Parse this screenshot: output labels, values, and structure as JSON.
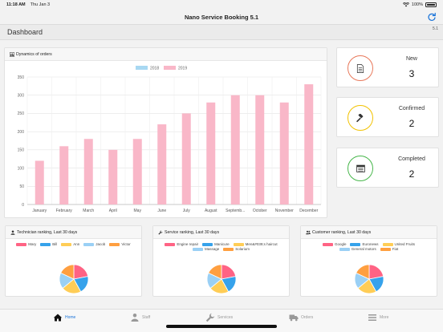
{
  "status_bar": {
    "time": "11:18 AM",
    "date": "Thu Jan 3",
    "battery": "100%"
  },
  "app": {
    "title": "Nano Service Booking 5.1",
    "page_title": "Dashboard",
    "version": "5.1"
  },
  "orders_chart": {
    "header": "Dynamics of orders",
    "colors": {
      "2018": "#a8d8f2",
      "2019": "#f9b7c8"
    }
  },
  "chart_data": {
    "type": "bar",
    "categories": [
      "January",
      "February",
      "March",
      "April",
      "May",
      "June",
      "July",
      "August",
      "Septemb...",
      "October",
      "November",
      "December"
    ],
    "series": [
      {
        "name": "2018",
        "values": [
          0,
          0,
          0,
          0,
          0,
          0,
          0,
          0,
          0,
          0,
          0,
          0
        ]
      },
      {
        "name": "2019",
        "values": [
          120,
          160,
          180,
          150,
          180,
          220,
          250,
          280,
          300,
          300,
          280,
          330
        ]
      }
    ],
    "ylim": [
      0,
      350
    ],
    "yticks": [
      0,
      50,
      100,
      150,
      200,
      250,
      300,
      350
    ],
    "grid": true,
    "legend_position": "top-center"
  },
  "stats": [
    {
      "label": "New",
      "value": "3",
      "color": "#e8785a",
      "icon": "document-icon"
    },
    {
      "label": "Confirmed",
      "value": "2",
      "color": "#f2c200",
      "icon": "gavel-icon"
    },
    {
      "label": "Completed",
      "value": "2",
      "color": "#46b64a",
      "icon": "calendar-icon"
    }
  ],
  "rankings": [
    {
      "header": "Technician ranking, Last 30 days",
      "icon": "user-icon",
      "legend": [
        {
          "name": "Mary",
          "color": "#ff6384"
        },
        {
          "name": "Bill",
          "color": "#36a2eb"
        },
        {
          "name": "Ann",
          "color": "#ffcd56"
        },
        {
          "name": "Jacob",
          "color": "#9ad0f5"
        },
        {
          "name": "Victor",
          "color": "#ff9f40"
        }
      ],
      "slices": [
        0.22,
        0.2,
        0.22,
        0.18,
        0.18
      ]
    },
    {
      "header": "Service ranking, Last 30 days",
      "icon": "wrench-icon",
      "legend": [
        {
          "name": "Engine repair",
          "color": "#ff6384"
        },
        {
          "name": "Manicure",
          "color": "#36a2eb"
        },
        {
          "name": "Men&#039;s haircut",
          "color": "#ffcd56"
        },
        {
          "name": "Massage",
          "color": "#9ad0f5"
        },
        {
          "name": "Solarium",
          "color": "#ff9f40"
        }
      ],
      "slices": [
        0.22,
        0.2,
        0.22,
        0.18,
        0.18
      ]
    },
    {
      "header": "Customer ranking, Last 30 days",
      "icon": "users-icon",
      "legend": [
        {
          "name": "Google",
          "color": "#ff6384"
        },
        {
          "name": "Euronews",
          "color": "#36a2eb"
        },
        {
          "name": "United Fruits",
          "color": "#ffcd56"
        },
        {
          "name": "General motors",
          "color": "#9ad0f5"
        },
        {
          "name": "Fiat",
          "color": "#ff9f40"
        }
      ],
      "slices": [
        0.22,
        0.2,
        0.22,
        0.18,
        0.18
      ]
    }
  ],
  "tabs": [
    {
      "label": "Home",
      "icon": "home-icon",
      "active": true
    },
    {
      "label": "Staff",
      "icon": "staff-icon",
      "active": false
    },
    {
      "label": "Services",
      "icon": "wrench-icon",
      "active": false
    },
    {
      "label": "Orders",
      "icon": "truck-icon",
      "active": false
    },
    {
      "label": "More",
      "icon": "menu-icon",
      "active": false
    }
  ]
}
